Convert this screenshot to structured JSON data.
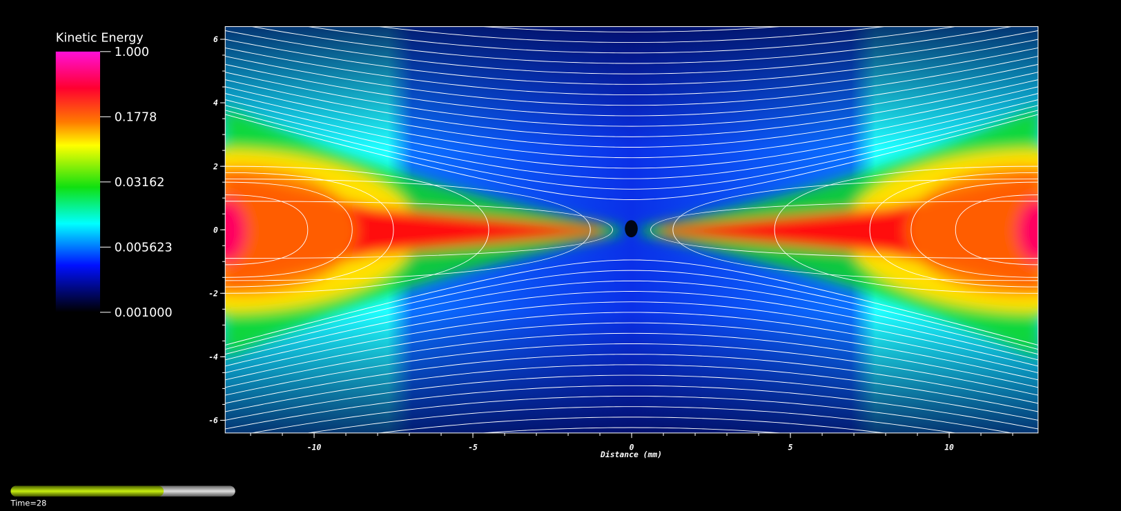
{
  "chart_data": {
    "type": "heatmap",
    "colorbar_title": "Kinetic Energy",
    "colorbar_lim": [
      0.001,
      1
    ],
    "colorbar_log": true,
    "colorbar_ticks": [
      {
        "value": 1,
        "label": "1.000"
      },
      0.1778,
      0.03162,
      0.005623,
      {
        "value": 0.001,
        "label": "0.001000"
      }
    ],
    "xlabel": "Distance (mm)",
    "xlim": [
      -12.8,
      12.8
    ],
    "xticks": [
      -10,
      -5,
      0,
      5,
      10
    ],
    "ylim": [
      -6.4,
      6.4
    ],
    "yticks": [
      -6,
      -4,
      -2,
      0,
      2,
      4,
      6
    ],
    "time_label": "Time=28"
  }
}
